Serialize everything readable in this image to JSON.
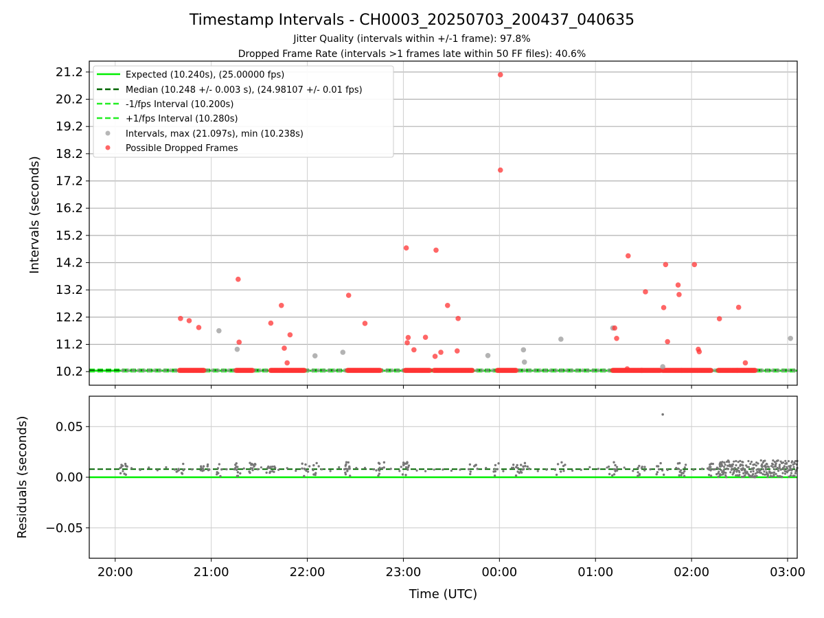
{
  "title": "Timestamp Intervals - CH0003_20250703_200437_040635",
  "subtitle_1": "Jitter Quality (intervals within +/-1 frame): 97.8%",
  "subtitle_2": "Dropped Frame Rate (intervals >1 frames late within 50 FF files): 40.6%",
  "colors": {
    "expected": "#00ee00",
    "median": "#006400",
    "bound": "#22ee22",
    "interval_point": "#999999",
    "dropped_point": "#ff3333",
    "residual_point": "#777777"
  },
  "chart_data": [
    {
      "type": "scatter",
      "name": "top",
      "ylabel": "Intervals (seconds)",
      "xlabel": "",
      "x_unit": "hours since 20:00 UTC",
      "xlim": [
        -0.27,
        7.1
      ],
      "ylim": [
        9.7,
        21.6
      ],
      "yticks": [
        "10.2",
        "11.2",
        "12.2",
        "13.2",
        "14.2",
        "15.2",
        "16.2",
        "17.2",
        "18.2",
        "19.2",
        "20.2",
        "21.2"
      ],
      "xticks": [
        "20:00",
        "21:00",
        "22:00",
        "23:00",
        "00:00",
        "01:00",
        "02:00",
        "03:00"
      ],
      "grid": true,
      "legend_position": "top-left",
      "legend": [
        {
          "label": "Expected (10.240s), (25.00000 fps)",
          "style": "solid"
        },
        {
          "label": "Median (10.248 +/- 0.003 s), (24.98107 +/- 0.01 fps)",
          "style": "dashed-dark"
        },
        {
          "label": "-1/fps Interval (10.200s)",
          "style": "dashed"
        },
        {
          "label": "+1/fps Interval (10.280s)",
          "style": "dashed"
        },
        {
          "label": "Intervals, max (21.097s), min (10.238s)",
          "style": "gray-dot"
        },
        {
          "label": "Possible Dropped Frames",
          "style": "red-dot"
        }
      ],
      "lines": {
        "expected": 10.24,
        "median": 10.248,
        "lower": 10.2,
        "upper": 10.28
      },
      "normal_x_range": [
        0.08,
        7.1
      ],
      "dropped_clusters": [
        [
          0.67,
          0.93
        ],
        [
          1.26,
          1.44
        ],
        [
          1.62,
          1.98
        ],
        [
          2.42,
          2.76
        ],
        [
          3.02,
          3.28
        ],
        [
          3.32,
          3.72
        ],
        [
          3.98,
          4.18
        ],
        [
          5.18,
          5.48
        ],
        [
          5.48,
          5.68
        ],
        [
          5.7,
          5.9
        ],
        [
          5.9,
          6.2
        ],
        [
          6.28,
          6.48
        ],
        [
          6.48,
          6.66
        ]
      ],
      "dropped_outliers": [
        {
          "x": 0.68,
          "y": 12.15
        },
        {
          "x": 0.77,
          "y": 12.07
        },
        {
          "x": 0.87,
          "y": 11.82
        },
        {
          "x": 1.28,
          "y": 13.59
        },
        {
          "x": 1.29,
          "y": 11.28
        },
        {
          "x": 1.62,
          "y": 11.98
        },
        {
          "x": 1.73,
          "y": 12.63
        },
        {
          "x": 1.76,
          "y": 11.06
        },
        {
          "x": 1.79,
          "y": 10.52
        },
        {
          "x": 1.82,
          "y": 11.55
        },
        {
          "x": 2.43,
          "y": 13.0
        },
        {
          "x": 2.6,
          "y": 11.97
        },
        {
          "x": 3.03,
          "y": 14.74
        },
        {
          "x": 3.04,
          "y": 11.26
        },
        {
          "x": 3.05,
          "y": 11.45
        },
        {
          "x": 3.11,
          "y": 11.0
        },
        {
          "x": 3.23,
          "y": 11.46
        },
        {
          "x": 3.33,
          "y": 10.76
        },
        {
          "x": 3.34,
          "y": 14.66
        },
        {
          "x": 3.39,
          "y": 10.91
        },
        {
          "x": 3.46,
          "y": 12.63
        },
        {
          "x": 3.56,
          "y": 10.96
        },
        {
          "x": 3.57,
          "y": 12.15
        },
        {
          "x": 4.01,
          "y": 21.1
        },
        {
          "x": 4.01,
          "y": 17.6
        },
        {
          "x": 5.2,
          "y": 11.8
        },
        {
          "x": 5.22,
          "y": 11.42
        },
        {
          "x": 5.33,
          "y": 10.3
        },
        {
          "x": 5.34,
          "y": 14.45
        },
        {
          "x": 5.52,
          "y": 13.13
        },
        {
          "x": 5.71,
          "y": 12.55
        },
        {
          "x": 5.73,
          "y": 14.13
        },
        {
          "x": 5.75,
          "y": 11.3
        },
        {
          "x": 5.86,
          "y": 13.38
        },
        {
          "x": 5.87,
          "y": 13.03
        },
        {
          "x": 6.03,
          "y": 14.13
        },
        {
          "x": 6.07,
          "y": 11.02
        },
        {
          "x": 6.08,
          "y": 10.93
        },
        {
          "x": 6.29,
          "y": 12.14
        },
        {
          "x": 6.49,
          "y": 12.56
        },
        {
          "x": 6.56,
          "y": 10.52
        }
      ],
      "gray_outliers": [
        {
          "x": 1.08,
          "y": 11.7
        },
        {
          "x": 1.27,
          "y": 11.02
        },
        {
          "x": 2.08,
          "y": 10.78
        },
        {
          "x": 2.37,
          "y": 10.91
        },
        {
          "x": 3.88,
          "y": 10.79
        },
        {
          "x": 4.25,
          "y": 11.0
        },
        {
          "x": 4.26,
          "y": 10.55
        },
        {
          "x": 4.64,
          "y": 11.39
        },
        {
          "x": 5.18,
          "y": 11.8
        },
        {
          "x": 5.7,
          "y": 10.38
        },
        {
          "x": 7.03,
          "y": 11.42
        }
      ]
    },
    {
      "type": "scatter",
      "name": "bottom",
      "ylabel": "Residuals (seconds)",
      "xlabel": "Time (UTC)",
      "x_unit": "hours since 20:00 UTC",
      "xlim": [
        -0.27,
        7.1
      ],
      "ylim": [
        -0.08,
        0.08
      ],
      "yticks": [
        "0.05",
        "0.00",
        "−0.05"
      ],
      "ytick_values": [
        0.05,
        0.0,
        -0.05
      ],
      "xticks": [
        "20:00",
        "21:00",
        "22:00",
        "23:00",
        "00:00",
        "01:00",
        "02:00",
        "03:00"
      ],
      "grid": true,
      "lines": {
        "zero": 0.0,
        "median": 0.008
      },
      "residual_cluster_x": [
        0.08,
        0.67,
        0.93,
        1.08,
        1.26,
        1.44,
        1.62,
        1.98,
        2.1,
        2.42,
        2.76,
        3.02,
        3.72,
        3.98,
        4.18,
        4.25,
        4.64,
        5.18,
        5.48,
        5.68,
        5.9,
        6.2,
        6.3
      ],
      "dense_range": [
        6.28,
        7.1
      ],
      "residual_outliers": [
        {
          "x": 5.7,
          "y": 0.062
        }
      ]
    }
  ]
}
